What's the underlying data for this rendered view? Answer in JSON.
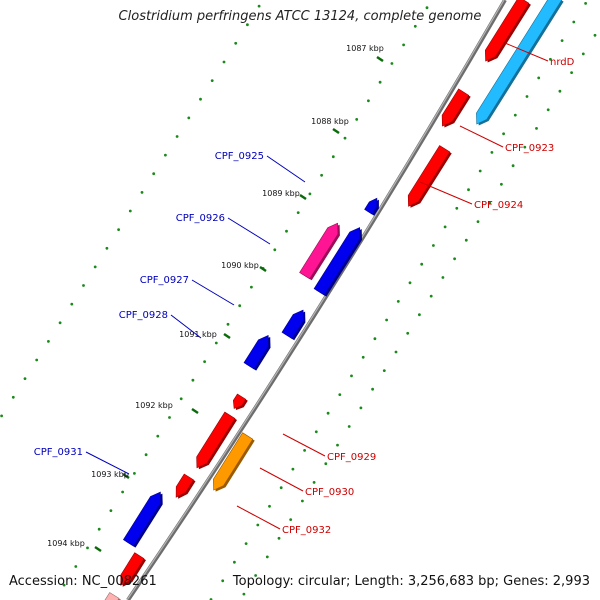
{
  "title": "Clostridium perfringens ATCC 13124, complete genome",
  "footer": {
    "accession": "Accession: NC_008261",
    "topology": "Topology: circular; Length: 3,256,683 bp; Genes: 2,993"
  },
  "ticks": [
    "1087 kbp",
    "1088 kbp",
    "1089 kbp",
    "1090 kbp",
    "1091 kbp",
    "1092 kbp",
    "1093 kbp",
    "1094 kbp"
  ],
  "forward_genes": [
    "nrdD",
    "CPF_0923",
    "CPF_0924",
    "CPF_0929",
    "CPF_0930",
    "CPF_0932"
  ],
  "reverse_genes": [
    "CPF_0925",
    "CPF_0926",
    "CPF_0927",
    "CPF_0928",
    "CPF_0931"
  ],
  "colors": {
    "backbone": "#7a7a7a",
    "forward_cds": "#ff0000",
    "reverse_cds": "#0000ee",
    "trna_like": "#ff1493",
    "rna_cyan": "#22bbff",
    "orange_feature": "#ff9900",
    "gc_dots": "#1a8a1a",
    "forward_label": "#cc0000",
    "reverse_label": "#0000bb"
  }
}
